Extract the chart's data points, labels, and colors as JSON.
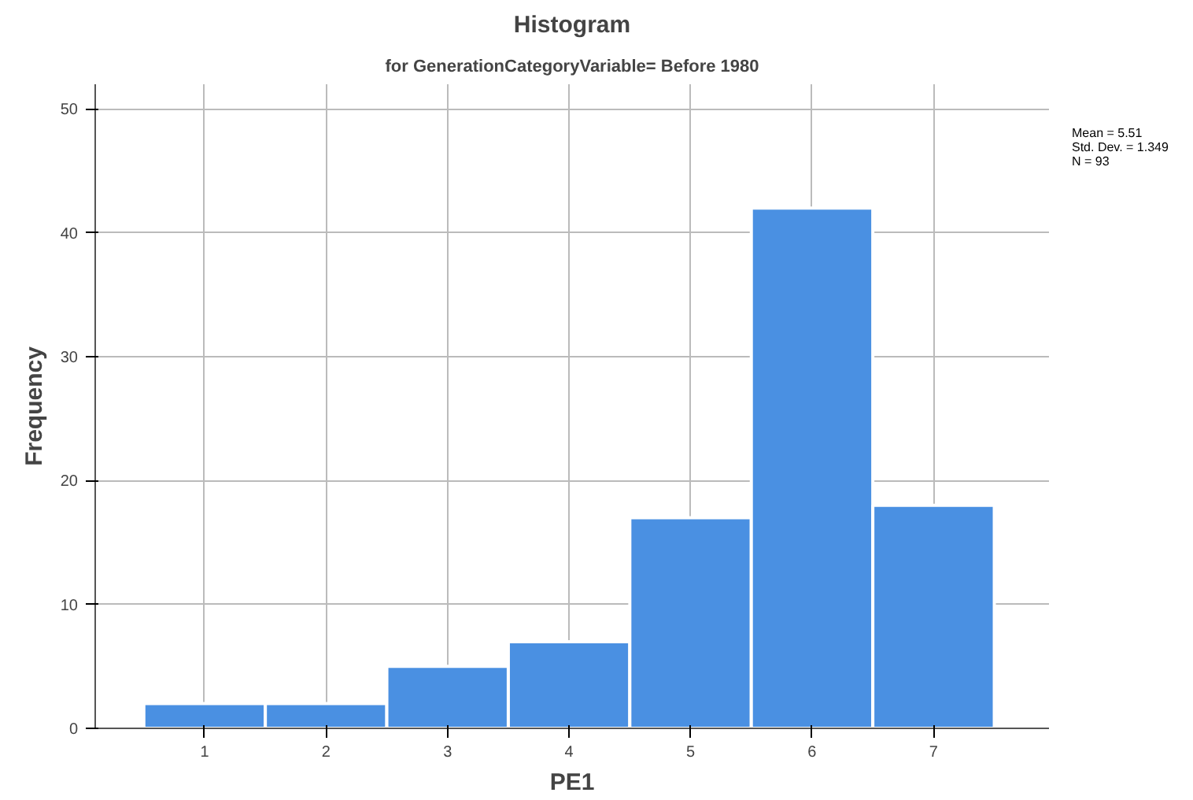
{
  "chart_data": {
    "type": "histogram",
    "title": "Histogram",
    "subtitle": "for GenerationCategoryVariable= Before 1980",
    "xlabel": "PE1",
    "ylabel": "Frequency",
    "bins": [
      0.5,
      1.5,
      2.5,
      3.5,
      4.5,
      5.5,
      6.5,
      7.5
    ],
    "values": [
      2,
      2,
      5,
      7,
      17,
      42,
      18
    ],
    "color": "#4a90e2",
    "xlim": [
      0.1,
      7.95
    ],
    "xticks": [
      1,
      2,
      3,
      4,
      5,
      6,
      7
    ],
    "ylim": [
      0,
      52
    ],
    "yticks": [
      0,
      10,
      20,
      30,
      40,
      50
    ],
    "grid": true,
    "annotations": [
      "Mean = 5.51",
      "Std. Dev. = 1.349",
      "N = 93"
    ]
  }
}
